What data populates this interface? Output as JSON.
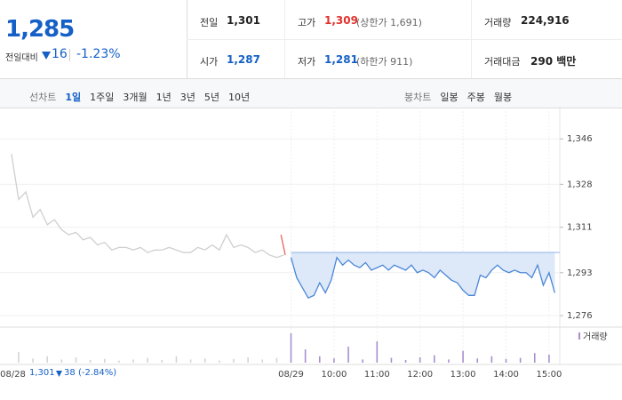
{
  "header": {
    "price": "1,285",
    "change_label": "전일대비",
    "change": "16",
    "change_rate": "-1.23%",
    "stats": [
      {
        "label": "전일",
        "value": "1,301"
      },
      {
        "label": "고가",
        "value": "1,309",
        "note": "(상한가 1,691)"
      },
      {
        "label": "거래량",
        "value": "224,916"
      },
      {
        "label": "시가",
        "value": "1,287"
      },
      {
        "label": "저가",
        "value": "1,281",
        "note": "(하한가 911)"
      },
      {
        "label": "거래대금",
        "value": "290 백만"
      }
    ]
  },
  "tabs": {
    "line_label": "선차트",
    "line": [
      "1일",
      "1주일",
      "3개월",
      "1년",
      "3년",
      "5년",
      "10년"
    ],
    "candle_label": "봉차트",
    "candle": [
      "일봉",
      "주봉",
      "월봉"
    ]
  },
  "footer": {
    "close": "1,301",
    "change": "38",
    "rate": "(-2.84%)"
  },
  "chart_data": {
    "type": "line",
    "xlim": [
      -406,
      375
    ],
    "xticks": [
      {
        "value": -388,
        "label": "08/28"
      },
      {
        "value": 0,
        "label": "08/29"
      },
      {
        "value": 60,
        "label": "10:00"
      },
      {
        "value": 120,
        "label": "11:00"
      },
      {
        "value": 180,
        "label": "12:00"
      },
      {
        "value": 240,
        "label": "13:00"
      },
      {
        "value": 300,
        "label": "14:00"
      },
      {
        "value": 360,
        "label": "15:00"
      }
    ],
    "ylim": [
      1272.5,
      1357
    ],
    "yticks": [
      {
        "value": 1346,
        "label": "1,346"
      },
      {
        "value": 1328,
        "label": "1,328"
      },
      {
        "value": 1311,
        "label": "1,311"
      },
      {
        "value": 1293,
        "label": "1,293"
      },
      {
        "value": 1276,
        "label": "1,276"
      }
    ],
    "grid": true,
    "reference_line": 1301,
    "series": [
      {
        "color": "#cfcfcf",
        "x": [
          -390,
          -380,
          -370,
          -360,
          -350,
          -340,
          -330,
          -320,
          -310,
          -300,
          -290,
          -280,
          -270,
          -260,
          -250,
          -240,
          -230,
          -220,
          -210,
          -200,
          -190,
          -180,
          -170,
          -160,
          -150,
          -140,
          -130,
          -120,
          -110,
          -100,
          -90,
          -80,
          -70,
          -60,
          -50,
          -40,
          -30,
          -20,
          -10
        ],
        "values": [
          1340,
          1322,
          1325,
          1315,
          1318,
          1312,
          1314,
          1310,
          1308,
          1309,
          1306,
          1307,
          1304,
          1305,
          1302,
          1303,
          1303,
          1302,
          1303,
          1301,
          1302,
          1302,
          1303,
          1302,
          1301,
          1301,
          1303,
          1302,
          1304,
          1302,
          1308,
          1303,
          1304,
          1303,
          1301,
          1302,
          1300,
          1299,
          1300
        ]
      },
      {
        "color": "#f0605a",
        "x": [
          -14,
          -8
        ],
        "values": [
          1308,
          1300
        ]
      },
      {
        "color": "#4a86d8",
        "area_color": "#dde9f8",
        "x": [
          0,
          8,
          16,
          24,
          32,
          40,
          48,
          56,
          64,
          72,
          80,
          88,
          96,
          104,
          112,
          120,
          128,
          136,
          144,
          152,
          160,
          168,
          176,
          184,
          192,
          200,
          208,
          216,
          224,
          232,
          240,
          248,
          256,
          264,
          272,
          280,
          288,
          296,
          304,
          312,
          320,
          328,
          336,
          344,
          352,
          360,
          368
        ],
        "values": [
          1299,
          1291,
          1287,
          1283,
          1284,
          1289,
          1285,
          1290,
          1299,
          1296,
          1298,
          1296,
          1295,
          1297,
          1294,
          1295,
          1296,
          1294,
          1296,
          1295,
          1294,
          1296,
          1293,
          1294,
          1293,
          1291,
          1294,
          1292,
          1290,
          1289,
          1286,
          1284,
          1284,
          1292,
          1291,
          1294,
          1296,
          1294,
          1293,
          1294,
          1293,
          1293,
          1291,
          1296,
          1288,
          1293,
          1285
        ]
      }
    ],
    "volume": {
      "ylim": [
        0,
        60
      ],
      "series": [
        {
          "color": "#d4d4d4",
          "x": [
            -380,
            -360,
            -340,
            -320,
            -300,
            -280,
            -260,
            -240,
            -220,
            -200,
            -180,
            -160,
            -140,
            -120,
            -100,
            -80,
            -60,
            -40,
            -20
          ],
          "values": [
            20,
            8,
            12,
            6,
            10,
            5,
            7,
            4,
            6,
            9,
            5,
            12,
            6,
            8,
            4,
            7,
            10,
            6,
            9
          ]
        },
        {
          "name": "거래량",
          "color": "#a98fd0",
          "x": [
            0,
            20,
            40,
            60,
            80,
            100,
            120,
            140,
            160,
            180,
            200,
            220,
            240,
            260,
            280,
            300,
            320,
            340,
            360
          ],
          "values": [
            55,
            25,
            12,
            8,
            30,
            6,
            40,
            9,
            5,
            10,
            14,
            6,
            22,
            8,
            12,
            7,
            9,
            18,
            15
          ]
        }
      ]
    }
  }
}
